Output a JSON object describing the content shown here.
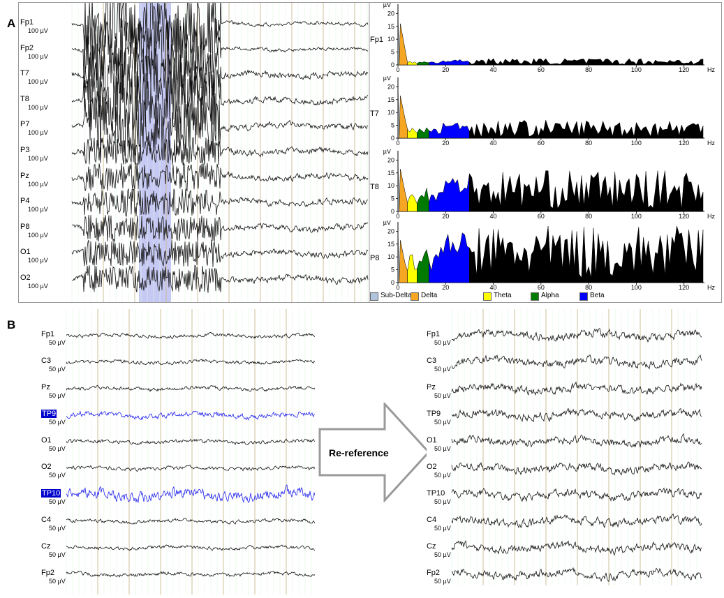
{
  "panel_labels": {
    "a": "A",
    "b": "B"
  },
  "panel_a": {
    "channels": [
      "Fp1",
      "Fp2",
      "T7",
      "T8",
      "P7",
      "P3",
      "Pz",
      "P4",
      "P8",
      "O1",
      "O2"
    ],
    "scale": "100 µV",
    "spectra": [
      {
        "channel": "Fp1",
        "yticks": [
          "0",
          "5",
          "10",
          "15",
          "20"
        ],
        "ylabel": "µV"
      },
      {
        "channel": "T7",
        "yticks": [
          "0",
          "5",
          "10",
          "15",
          "20"
        ],
        "ylabel": "µV"
      },
      {
        "channel": "T8",
        "yticks": [
          "0",
          "5",
          "10",
          "15",
          "20"
        ],
        "ylabel": "µV"
      },
      {
        "channel": "P8",
        "yticks": [
          "0",
          "5",
          "10",
          "15",
          "20"
        ],
        "ylabel": "µV"
      }
    ],
    "xticks": [
      "0",
      "20",
      "40",
      "60",
      "80",
      "100",
      "120"
    ],
    "xunit": "Hz",
    "legend": [
      {
        "label": "Sub-Delta",
        "color": "#b0c4de"
      },
      {
        "label": "Delta",
        "color": "#f5a623"
      },
      {
        "label": "Theta",
        "color": "#ffff00"
      },
      {
        "label": "Alpha",
        "color": "#007a00"
      },
      {
        "label": "Beta",
        "color": "#0000ff"
      }
    ]
  },
  "panel_b": {
    "left_channels": [
      "Fp1",
      "C3",
      "Pz",
      "TP9",
      "O1",
      "O2",
      "TP10",
      "C4",
      "Cz",
      "Fp2"
    ],
    "right_channels": [
      "Fp1",
      "C3",
      "Pz",
      "TP9",
      "O1",
      "O2",
      "TP10",
      "C4",
      "Cz",
      "Fp2"
    ],
    "highlighted": [
      "TP9",
      "TP10"
    ],
    "scale": "50 µV",
    "arrow_label": "Re-reference"
  }
}
